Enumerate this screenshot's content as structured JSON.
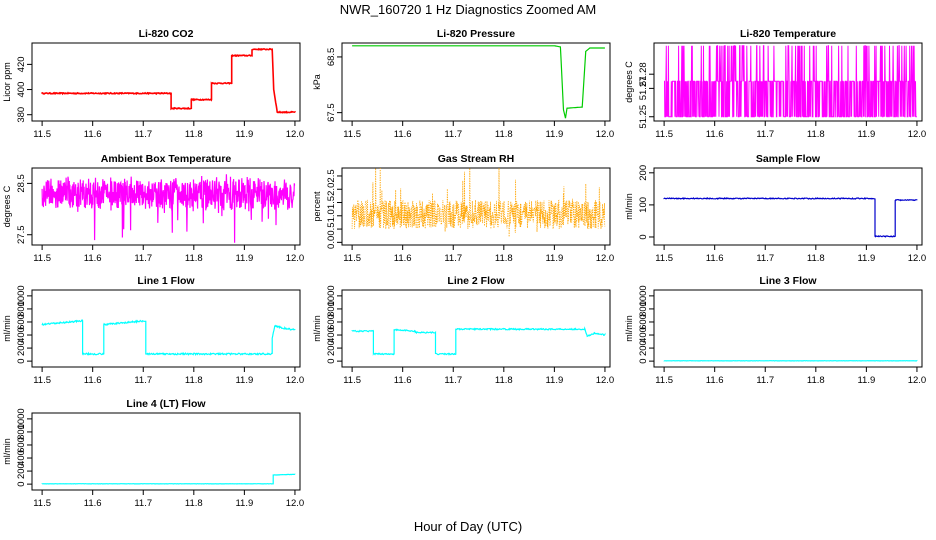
{
  "figure": {
    "title": "NWR_160720  1 Hz Diagnostics Zoomed AM",
    "xlabel": "Hour of Day (UTC)"
  },
  "chart_data": [
    {
      "id": "co2",
      "type": "line",
      "title": "Li-820 CO2",
      "ylabel": "Licor ppm",
      "color": "#ff0000",
      "xlim": [
        11.48,
        12.01
      ],
      "ylim": [
        375,
        437
      ],
      "xticks": [
        "11.5",
        "11.6",
        "11.7",
        "11.8",
        "11.9",
        "12.0"
      ],
      "yticks": [
        380,
        400,
        420
      ],
      "noise": 0.4,
      "x": [
        11.5,
        11.755,
        11.755,
        11.795,
        11.795,
        11.835,
        11.835,
        11.875,
        11.875,
        11.915,
        11.915,
        11.955,
        11.958,
        11.965,
        11.965,
        12.0
      ],
      "y": [
        397,
        397,
        385,
        385,
        392,
        392,
        405,
        405,
        427,
        427,
        432,
        432,
        400,
        382,
        382,
        382
      ]
    },
    {
      "id": "pressure",
      "type": "line",
      "title": "Li-820 Pressure",
      "ylabel": "kPa",
      "color": "#00cc00",
      "xlim": [
        11.48,
        12.01
      ],
      "ylim": [
        67.35,
        68.75
      ],
      "xticks": [
        "11.5",
        "11.6",
        "11.7",
        "11.8",
        "11.9",
        "12.0"
      ],
      "yticks": [
        "67.5",
        "68.5"
      ],
      "noise": 0.0,
      "x": [
        11.5,
        11.9,
        11.912,
        11.918,
        11.922,
        11.925,
        11.955,
        11.962,
        11.97,
        12.0
      ],
      "y": [
        68.7,
        68.7,
        68.68,
        67.55,
        67.4,
        67.58,
        67.6,
        68.6,
        68.66,
        68.66
      ]
    },
    {
      "id": "temperature",
      "type": "line",
      "title": "Li-820 Temperature",
      "ylabel": "degrees C",
      "color": "#ff00ff",
      "xlim": [
        11.48,
        12.01
      ],
      "ylim": [
        51.247,
        51.302
      ],
      "xticks": [
        "11.5",
        "11.6",
        "11.7",
        "11.8",
        "11.9",
        "12.0"
      ],
      "yticks": [
        "51.25",
        "51.27",
        "51.28"
      ],
      "levels": [
        51.25,
        51.275,
        51.3
      ]
    },
    {
      "id": "ambient",
      "type": "line",
      "title": "Ambient Box Temperature",
      "ylabel": "degrees C",
      "color": "#ff00ff",
      "xlim": [
        11.48,
        12.01
      ],
      "ylim": [
        27.3,
        28.8
      ],
      "xticks": [
        "11.5",
        "11.6",
        "11.7",
        "11.8",
        "11.9",
        "12.0"
      ],
      "yticks": [
        "27.5",
        "28.5"
      ],
      "center": 28.3,
      "spread": 0.35
    },
    {
      "id": "rh",
      "type": "scatter",
      "title": "Gas Stream RH",
      "ylabel": "percent",
      "color": "#ffa500",
      "xlim": [
        11.48,
        12.01
      ],
      "ylim": [
        -0.1,
        2.8
      ],
      "xticks": [
        "11.5",
        "11.6",
        "11.7",
        "11.8",
        "11.9",
        "12.0"
      ],
      "yticks": [
        "0.0",
        "0.5",
        "1.0",
        "1.5",
        "2.0",
        "2.5"
      ],
      "center": 1.05,
      "spread": 0.55
    },
    {
      "id": "sampleflow",
      "type": "line",
      "title": "Sample Flow",
      "ylabel": "ml/min",
      "color": "#0000cc",
      "xlim": [
        11.48,
        12.01
      ],
      "ylim": [
        -25,
        215
      ],
      "xticks": [
        "11.5",
        "11.6",
        "11.7",
        "11.8",
        "11.9",
        "12.0"
      ],
      "yticks": [
        0,
        100,
        200
      ],
      "noise": 1.5,
      "x": [
        11.5,
        11.917,
        11.917,
        11.957,
        11.957,
        12.0
      ],
      "y": [
        120,
        120,
        2,
        2,
        115,
        115
      ]
    },
    {
      "id": "line1",
      "type": "line",
      "title": "Line 1 Flow",
      "ylabel": "ml/min",
      "color": "#00ffff",
      "xlim": [
        11.48,
        12.01
      ],
      "ylim": [
        -90,
        1090
      ],
      "xticks": [
        "11.5",
        "11.6",
        "11.7",
        "11.8",
        "11.9",
        "12.0"
      ],
      "yticks": [
        0,
        200,
        400,
        600,
        800,
        1000
      ],
      "noise": 12,
      "x": [
        11.5,
        11.58,
        11.58,
        11.622,
        11.622,
        11.705,
        11.705,
        11.955,
        11.955,
        11.96,
        11.98,
        12.0
      ],
      "y": [
        560,
        620,
        110,
        110,
        560,
        620,
        110,
        110,
        350,
        540,
        500,
        480
      ]
    },
    {
      "id": "line2",
      "type": "line",
      "title": "Line 2 Flow",
      "ylabel": "ml/min",
      "color": "#00ffff",
      "xlim": [
        11.48,
        12.01
      ],
      "ylim": [
        -90,
        1090
      ],
      "xticks": [
        "11.5",
        "11.6",
        "11.7",
        "11.8",
        "11.9",
        "12.0"
      ],
      "yticks": [
        0,
        200,
        400,
        600,
        800,
        1000
      ],
      "noise": 10,
      "x": [
        11.5,
        11.542,
        11.542,
        11.583,
        11.583,
        11.625,
        11.625,
        11.665,
        11.665,
        11.705,
        11.705,
        11.96,
        11.965,
        11.98,
        12.0
      ],
      "y": [
        460,
        460,
        110,
        110,
        480,
        460,
        440,
        440,
        110,
        110,
        490,
        490,
        380,
        430,
        400
      ]
    },
    {
      "id": "line3",
      "type": "line",
      "title": "Line 3 Flow",
      "ylabel": "ml/min",
      "color": "#00ffff",
      "xlim": [
        11.48,
        12.01
      ],
      "ylim": [
        -90,
        1090
      ],
      "xticks": [
        "11.5",
        "11.6",
        "11.7",
        "11.8",
        "11.9",
        "12.0"
      ],
      "yticks": [
        0,
        200,
        400,
        600,
        800,
        1000
      ],
      "noise": 2,
      "x": [
        11.5,
        12.0
      ],
      "y": [
        5,
        5
      ]
    },
    {
      "id": "line4",
      "type": "line",
      "title": "Line 4 (LT) Flow",
      "ylabel": "ml/min",
      "color": "#00ffff",
      "xlim": [
        11.48,
        12.01
      ],
      "ylim": [
        -90,
        1090
      ],
      "xticks": [
        "11.5",
        "11.6",
        "11.7",
        "11.8",
        "11.9",
        "12.0"
      ],
      "yticks": [
        0,
        200,
        400,
        600,
        800,
        1000
      ],
      "noise": 2,
      "x": [
        11.5,
        11.957,
        11.957,
        12.0
      ],
      "y": [
        5,
        5,
        140,
        150
      ]
    }
  ]
}
